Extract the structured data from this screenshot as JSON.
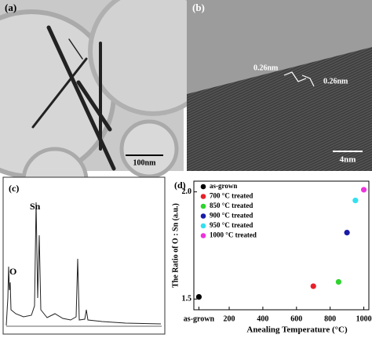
{
  "panels": {
    "a": {
      "label": "(a)",
      "scale_bar": "100nm"
    },
    "b": {
      "label": "(b)",
      "spacing_labels": [
        "0.26nm",
        "0.26nm"
      ],
      "scale_bar": "4nm"
    },
    "c": {
      "label": "(c)",
      "peak_labels": [
        "O",
        "Sn"
      ]
    }
  },
  "chart_data": {
    "type": "scatter",
    "panel_label": "(d)",
    "x_label": "Anealing Temperature (°C)",
    "y_label": "The Ratio of O : Sn  (a.u.)",
    "xlim": [
      -10,
      1030
    ],
    "ylim": [
      1.45,
      2.05
    ],
    "xticks": [
      {
        "value": 20,
        "label": "as-grown"
      },
      200,
      400,
      600,
      800,
      1000
    ],
    "yticks": [
      1.5,
      {
        "value": 2,
        "label": "2.0"
      }
    ],
    "legend": "upper left",
    "series": [
      {
        "name": "as-grown",
        "color": "#000000",
        "x": [
          20
        ],
        "values": [
          1.51
        ]
      },
      {
        "name": "700 °C treated",
        "color": "#e8202a",
        "x": [
          700
        ],
        "values": [
          1.56
        ]
      },
      {
        "name": "850 °C treated",
        "color": "#2ed42e",
        "x": [
          850
        ],
        "values": [
          1.58
        ]
      },
      {
        "name": "900 °C treated",
        "color": "#1a1aa8",
        "x": [
          900
        ],
        "values": [
          1.81
        ]
      },
      {
        "name": "950 °C treated",
        "color": "#33e0f0",
        "x": [
          950
        ],
        "values": [
          1.96
        ]
      },
      {
        "name": "1000 °C treated",
        "color": "#ee33dd",
        "x": [
          1000
        ],
        "values": [
          2.01
        ]
      }
    ]
  }
}
